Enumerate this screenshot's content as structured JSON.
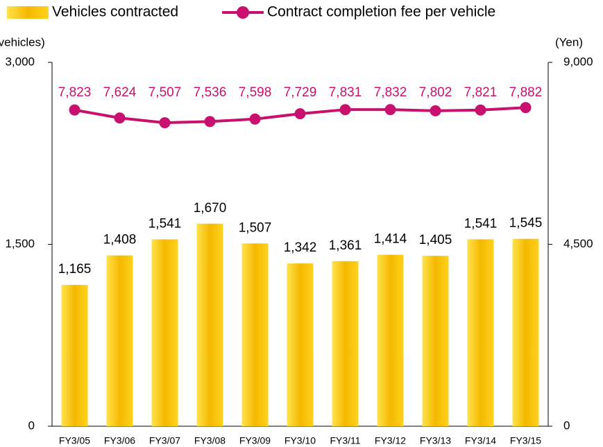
{
  "chart_data": {
    "type": "bar+line",
    "y_label": "(vehicles)",
    "y2_label": "(Yen)",
    "categories": [
      "FY3/05",
      "FY3/06",
      "FY3/07",
      "FY3/08",
      "FY3/09",
      "FY3/10",
      "FY3/11",
      "FY3/12",
      "FY3/13",
      "FY3/14",
      "FY3/15"
    ],
    "series": [
      {
        "name": "Vehicles contracted",
        "type": "bar",
        "color": "#f5b800",
        "values": [
          1165,
          1408,
          1541,
          1670,
          1507,
          1342,
          1361,
          1414,
          1405,
          1541,
          1545
        ],
        "value_labels": [
          "1,165",
          "1,408",
          "1,541",
          "1,670",
          "1,507",
          "1,342",
          "1,361",
          "1,414",
          "1,405",
          "1,541",
          "1,545"
        ]
      },
      {
        "name": "Contract completion fee per vehicle",
        "type": "line",
        "axis": "y2",
        "color": "#c8106e",
        "values": [
          7823,
          7624,
          7507,
          7536,
          7598,
          7729,
          7831,
          7832,
          7802,
          7821,
          7882
        ],
        "value_labels": [
          "7,823",
          "7,624",
          "7,507",
          "7,536",
          "7,598",
          "7,729",
          "7,831",
          "7,832",
          "7,802",
          "7,821",
          "7,882"
        ]
      }
    ],
    "ylim": [
      0,
      3000
    ],
    "yticks": [
      0,
      {
        "value": 1500,
        "label": "1,500"
      },
      {
        "value": 3000,
        "label": "3,000"
      }
    ],
    "y2lim": [
      0,
      9000
    ],
    "y2ticks": [
      0,
      {
        "value": 4500,
        "label": "4,500"
      },
      {
        "value": 9000,
        "label": "9,000"
      }
    ]
  }
}
